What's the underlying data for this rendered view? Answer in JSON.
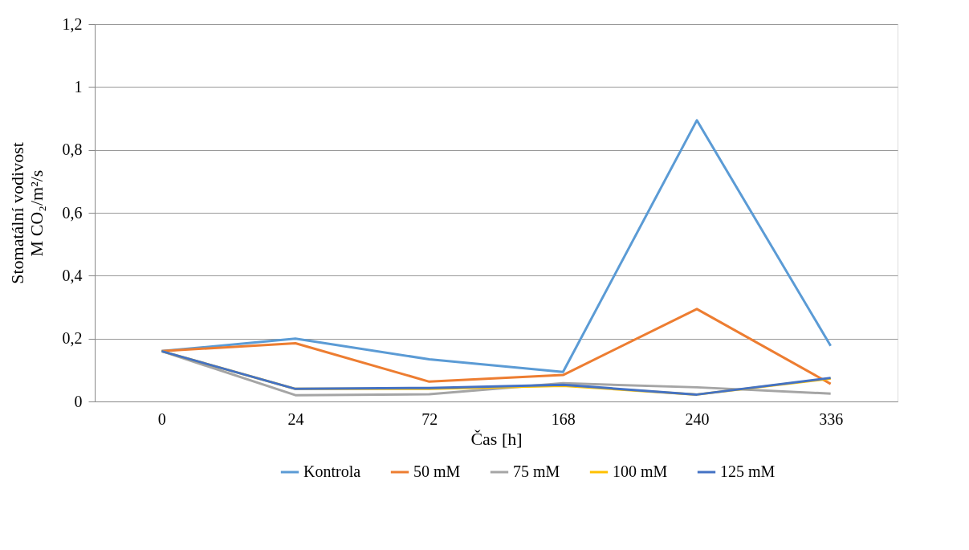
{
  "chart_data": {
    "type": "line",
    "xlabel": "Čas [h]",
    "ylabel": "Stomatální vodivost\nM CO₂/m²/s",
    "categories": [
      "0",
      "24",
      "72",
      "168",
      "240",
      "336"
    ],
    "series": [
      {
        "name": "Kontrola",
        "color": "#5b9bd5",
        "values": [
          0.16,
          0.2,
          0.134,
          0.094,
          0.894,
          0.177
        ]
      },
      {
        "name": "50 mM",
        "color": "#ed7d31",
        "values": [
          0.16,
          0.185,
          0.063,
          0.084,
          0.294,
          0.056
        ]
      },
      {
        "name": "75 mM",
        "color": "#a5a5a5",
        "values": [
          0.16,
          0.02,
          0.023,
          0.058,
          0.045,
          0.025
        ]
      },
      {
        "name": "100 mM",
        "color": "#ffc000",
        "values": [
          0.16,
          0.04,
          0.04,
          0.05,
          0.022,
          0.073
        ]
      },
      {
        "name": "125 mM",
        "color": "#4472c4",
        "values": [
          0.16,
          0.04,
          0.043,
          0.053,
          0.022,
          0.075
        ]
      }
    ],
    "ylim": [
      0,
      1.2
    ],
    "yticks": [
      0,
      {
        "value": 0.2,
        "label": "0,2"
      },
      {
        "value": 0.4,
        "label": "0,4"
      },
      {
        "value": 0.6,
        "label": "0,6"
      },
      {
        "value": 0.8,
        "label": "0,8"
      },
      1,
      {
        "value": 1.2,
        "label": "1,2"
      }
    ],
    "grid": "y",
    "legend": "bottom",
    "marker": "none",
    "line_style": "solid"
  }
}
